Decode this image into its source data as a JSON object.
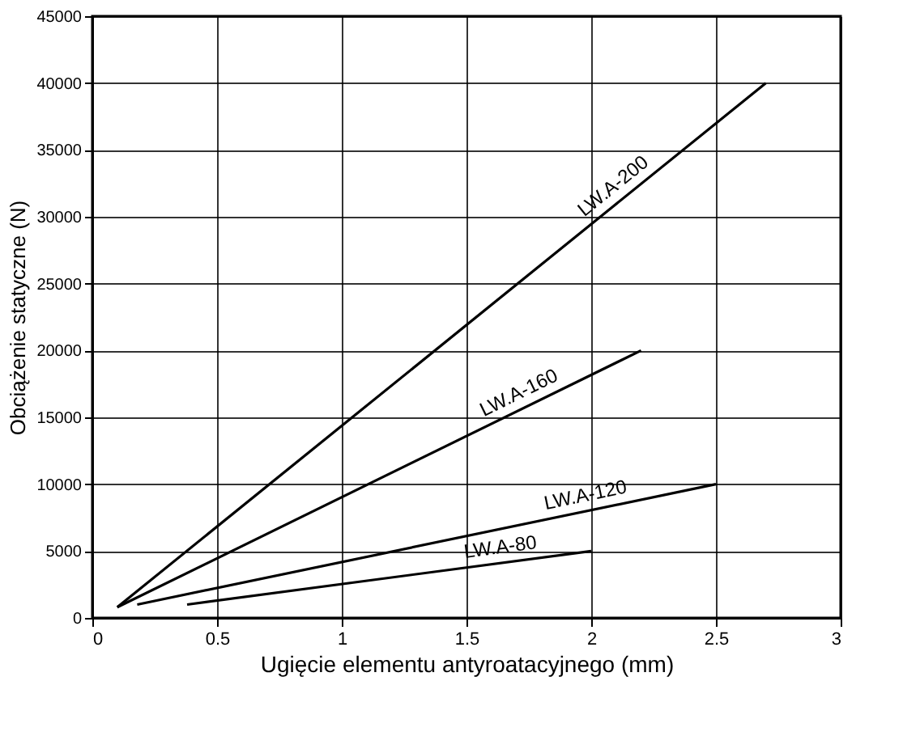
{
  "chart_data": {
    "type": "line",
    "xlabel": "Ugięcie elementu antyroatacyjnego (mm)",
    "ylabel": "Obciążenie statyczne (N)",
    "xlim": [
      0,
      3
    ],
    "xticks": [
      0,
      0.5,
      1,
      1.5,
      2,
      2.5,
      3
    ],
    "ylim": [
      0,
      45000
    ],
    "yticks": [
      0,
      5000,
      10000,
      15000,
      20000,
      25000,
      30000,
      35000,
      40000,
      45000
    ],
    "grid": true,
    "marker": "none",
    "line_style": "solid",
    "series": [
      {
        "name": "LW.A-200",
        "color": "#000000",
        "x": [
          0.1,
          2.7
        ],
        "values": [
          800,
          40000
        ]
      },
      {
        "name": "LW.A-160",
        "color": "#000000",
        "x": [
          0.1,
          2.2
        ],
        "values": [
          800,
          20000
        ]
      },
      {
        "name": "LW.A-120",
        "color": "#000000",
        "x": [
          0.18,
          2.5
        ],
        "values": [
          1000,
          10000
        ]
      },
      {
        "name": "LW.A-80",
        "color": "#000000",
        "x": [
          0.38,
          2.0
        ],
        "values": [
          1000,
          5000
        ]
      }
    ]
  }
}
